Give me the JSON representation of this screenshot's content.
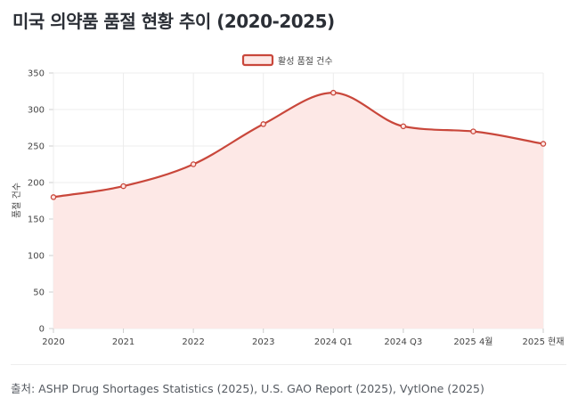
{
  "title": "미국 의약품 품절 현황 추이 (2020-2025)",
  "source": "출처: ASHP Drug Shortages Statistics (2025), U.S. GAO Report (2025), VytlOne (2025)",
  "colors": {
    "line": "#c9473b",
    "fill": "#fde8e6",
    "grid": "#ececec",
    "axis_text": "#444444"
  },
  "chart_data": {
    "type": "area",
    "categories": [
      "2020",
      "2021",
      "2022",
      "2023",
      "2024 Q1",
      "2024 Q3",
      "2025 4월",
      "2025 현재"
    ],
    "series": [
      {
        "name": "활성 품절 건수",
        "values": [
          180,
          195,
          225,
          280,
          323,
          277,
          270,
          253
        ]
      }
    ],
    "title": "",
    "xlabel": "",
    "ylabel": "품절 건수",
    "ylim": [
      0,
      350
    ],
    "yticks": [
      0,
      50,
      100,
      150,
      200,
      250,
      300,
      350
    ],
    "legend": "top-center",
    "grid": true
  }
}
